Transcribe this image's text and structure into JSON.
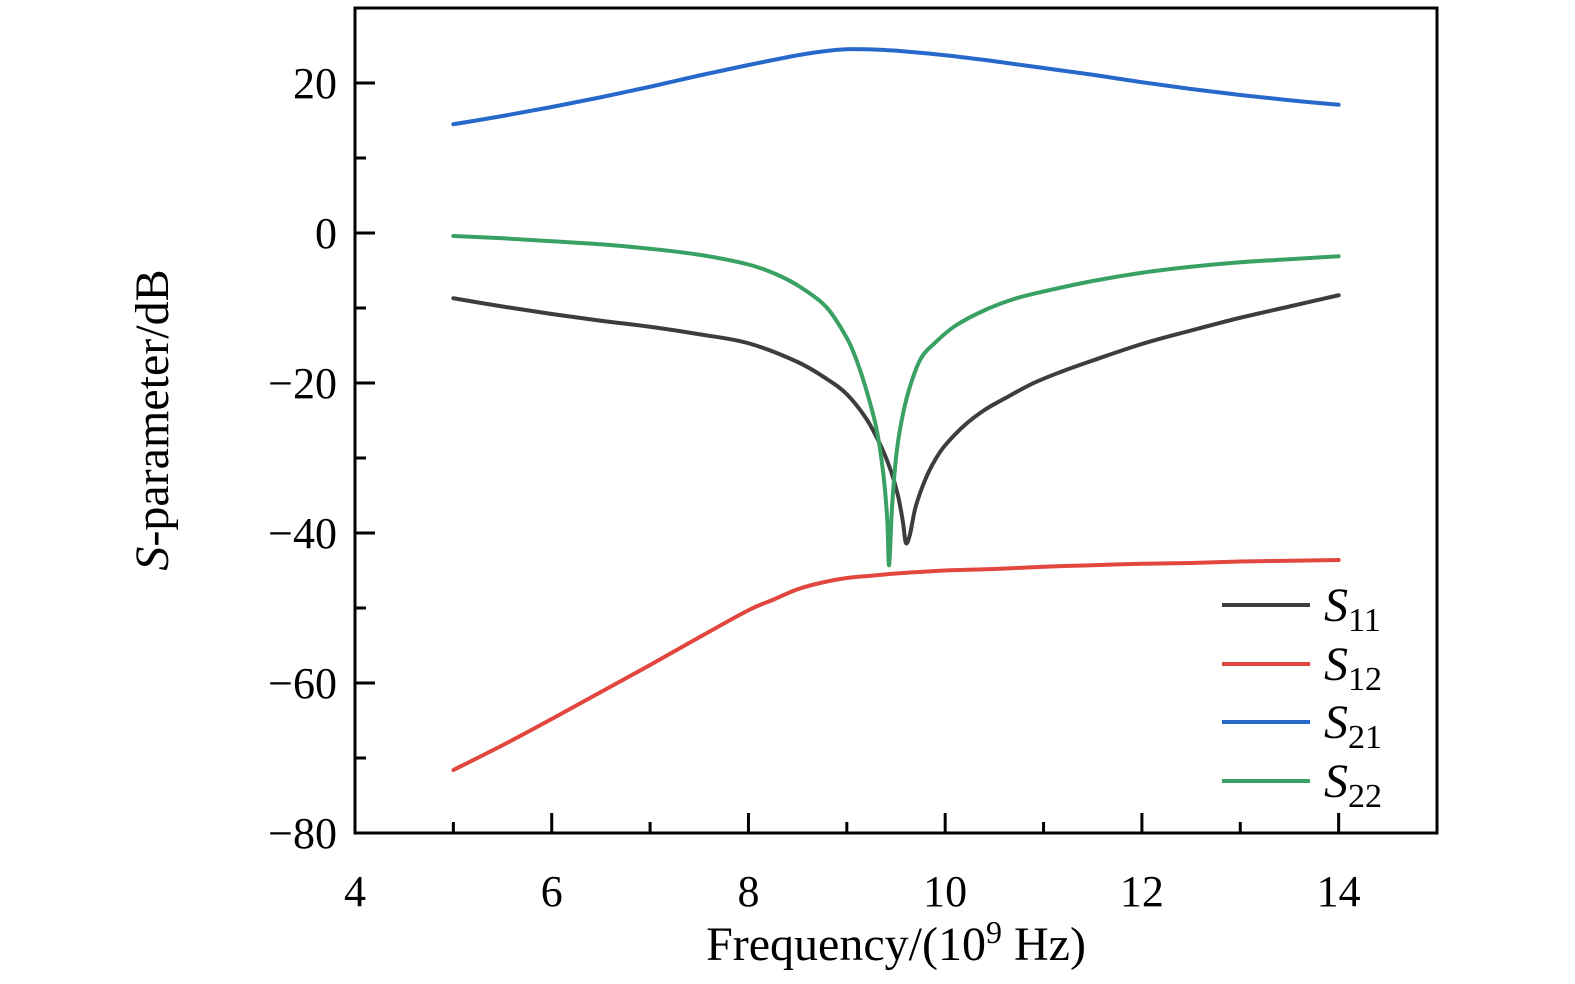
{
  "figure": {
    "background": "#ffffff",
    "frame_color": "#000000"
  },
  "chart_data": {
    "type": "line",
    "title": "",
    "grid": false,
    "legend_position": "lower right",
    "xlabel": {
      "pre": "Frequency/(10",
      "sup": "9",
      "post": " Hz)"
    },
    "ylabel": {
      "italic": "S",
      "rest": "-parameter/dB"
    },
    "x_range": [
      4,
      15
    ],
    "y_range": [
      -80,
      30
    ],
    "x_major_ticks": [
      {
        "v": 4,
        "label": "4"
      },
      {
        "v": 6,
        "label": "6"
      },
      {
        "v": 8,
        "label": "8"
      },
      {
        "v": 10,
        "label": "10"
      },
      {
        "v": 12,
        "label": "12"
      },
      {
        "v": 14,
        "label": "14"
      }
    ],
    "x_minor_ticks": [
      5,
      7,
      9,
      11,
      13,
      15
    ],
    "y_major_ticks": [
      {
        "v": 20,
        "label": "20"
      },
      {
        "v": 0,
        "label": "0"
      },
      {
        "v": -20,
        "label": "−20"
      },
      {
        "v": -40,
        "label": "−40"
      },
      {
        "v": -60,
        "label": "−60"
      },
      {
        "v": -80,
        "label": "−80"
      }
    ],
    "y_minor_ticks": [
      30,
      10,
      -10,
      -30,
      -50,
      -70
    ],
    "series": [
      {
        "name": "S11",
        "label_base": "S",
        "label_sub": "11",
        "color": "#3d3d3d",
        "points": [
          [
            5,
            -8.7
          ],
          [
            5.5,
            -9.8
          ],
          [
            6,
            -10.8
          ],
          [
            6.5,
            -11.7
          ],
          [
            7,
            -12.5
          ],
          [
            7.5,
            -13.5
          ],
          [
            8,
            -14.7
          ],
          [
            8.5,
            -17.2
          ],
          [
            8.8,
            -19.5
          ],
          [
            9,
            -21.5
          ],
          [
            9.2,
            -24.8
          ],
          [
            9.35,
            -28.5
          ],
          [
            9.45,
            -31.8
          ],
          [
            9.52,
            -35.0
          ],
          [
            9.57,
            -38.5
          ],
          [
            9.6,
            -41.3
          ],
          [
            9.64,
            -40.3
          ],
          [
            9.7,
            -36.5
          ],
          [
            9.8,
            -32.8
          ],
          [
            9.9,
            -30.2
          ],
          [
            10,
            -28.3
          ],
          [
            10.2,
            -25.6
          ],
          [
            10.4,
            -23.6
          ],
          [
            10.6,
            -22.1
          ],
          [
            10.9,
            -20.0
          ],
          [
            11.2,
            -18.4
          ],
          [
            11.5,
            -17.0
          ],
          [
            12,
            -14.8
          ],
          [
            12.5,
            -13.0
          ],
          [
            13,
            -11.3
          ],
          [
            13.5,
            -9.8
          ],
          [
            14,
            -8.3
          ]
        ]
      },
      {
        "name": "S12",
        "label_base": "S",
        "label_sub": "12",
        "color": "#e1473f",
        "points": [
          [
            5,
            -71.6
          ],
          [
            5.5,
            -68.3
          ],
          [
            6,
            -64.8
          ],
          [
            6.5,
            -61.2
          ],
          [
            7,
            -57.6
          ],
          [
            7.5,
            -53.9
          ],
          [
            8,
            -50.3
          ],
          [
            8.25,
            -48.9
          ],
          [
            8.5,
            -47.5
          ],
          [
            8.75,
            -46.6
          ],
          [
            9,
            -46.0
          ],
          [
            9.25,
            -45.7
          ],
          [
            9.5,
            -45.4
          ],
          [
            10,
            -45.0
          ],
          [
            10.5,
            -44.8
          ],
          [
            11,
            -44.5
          ],
          [
            11.5,
            -44.3
          ],
          [
            12,
            -44.1
          ],
          [
            12.5,
            -44.0
          ],
          [
            13,
            -43.8
          ],
          [
            13.5,
            -43.7
          ],
          [
            14,
            -43.6
          ]
        ]
      },
      {
        "name": "S21",
        "label_base": "S",
        "label_sub": "21",
        "color": "#2768cb",
        "points": [
          [
            5,
            14.5
          ],
          [
            5.5,
            15.6
          ],
          [
            6,
            16.8
          ],
          [
            6.5,
            18.1
          ],
          [
            7,
            19.5
          ],
          [
            7.5,
            21.0
          ],
          [
            8,
            22.4
          ],
          [
            8.5,
            23.7
          ],
          [
            8.75,
            24.2
          ],
          [
            9,
            24.5
          ],
          [
            9.3,
            24.45
          ],
          [
            9.6,
            24.2
          ],
          [
            10,
            23.7
          ],
          [
            10.5,
            22.9
          ],
          [
            11,
            22.0
          ],
          [
            11.5,
            21.1
          ],
          [
            12,
            20.1
          ],
          [
            12.5,
            19.2
          ],
          [
            13,
            18.4
          ],
          [
            13.5,
            17.7
          ],
          [
            14,
            17.1
          ]
        ]
      },
      {
        "name": "S22",
        "label_base": "S",
        "label_sub": "22",
        "color": "#3aa164",
        "points": [
          [
            5,
            -0.4
          ],
          [
            5.5,
            -0.7
          ],
          [
            6,
            -1.1
          ],
          [
            6.5,
            -1.5
          ],
          [
            7,
            -2.1
          ],
          [
            7.5,
            -2.9
          ],
          [
            8,
            -4.2
          ],
          [
            8.3,
            -5.6
          ],
          [
            8.55,
            -7.4
          ],
          [
            8.8,
            -10.0
          ],
          [
            9,
            -14.0
          ],
          [
            9.1,
            -17.0
          ],
          [
            9.2,
            -21.0
          ],
          [
            9.3,
            -26.0
          ],
          [
            9.37,
            -32.0
          ],
          [
            9.41,
            -38.0
          ],
          [
            9.43,
            -44.3
          ],
          [
            9.46,
            -36.5
          ],
          [
            9.5,
            -30.0
          ],
          [
            9.55,
            -25.5
          ],
          [
            9.63,
            -21.0
          ],
          [
            9.75,
            -16.8
          ],
          [
            9.9,
            -14.6
          ],
          [
            10.1,
            -12.4
          ],
          [
            10.4,
            -10.3
          ],
          [
            10.7,
            -8.8
          ],
          [
            11,
            -7.8
          ],
          [
            11.5,
            -6.4
          ],
          [
            12,
            -5.3
          ],
          [
            12.5,
            -4.5
          ],
          [
            13,
            -3.9
          ],
          [
            13.5,
            -3.5
          ],
          [
            14,
            -3.1
          ]
        ]
      }
    ]
  }
}
